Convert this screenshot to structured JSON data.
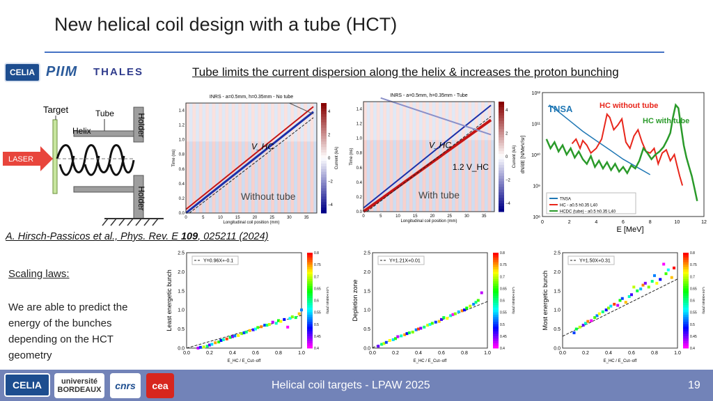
{
  "slide": {
    "title": "New helical coil design with a tube (HCT)",
    "headline": "Tube limits the current dispersion along the helix & increases the proton bunching",
    "citation_prefix": "A. Hirsch-Passicos et al., Phys. Rev. E ",
    "citation_volume": "109",
    "citation_suffix": ", 025211 (2024)",
    "scaling_heading": "Scaling laws:",
    "scaling_text": "We are able to predict the energy of the bunches depending on the HCT geometry",
    "footer_text": "Helical coil targets - LPAW 2025",
    "page_number": "19"
  },
  "logos": {
    "celia": "CELIA",
    "piim": "PIIM",
    "thales": "THALES",
    "universite_line1": "université",
    "universite_line2": "BORDEAUX",
    "cnrs": "cnrs",
    "cea": "cea"
  },
  "diagram": {
    "target": "Target",
    "tube": "Tube",
    "helix": "Helix",
    "holder_top": "Holder",
    "holder_bottom": "Holder",
    "laser": "LASER"
  },
  "colors": {
    "title_rule": "#4472c4",
    "footer": "#7283b8",
    "laser": "#e8453c",
    "hc_without": "#e8261b",
    "hc_with": "#2a9a2a",
    "tnsa": "#1f77b4",
    "accent_red": "#c00000"
  },
  "chart_data": [
    {
      "type": "heatmap",
      "title": "INRS - a=0.5mm, h=0.35mm - No tube",
      "xlabel": "Longitudinal coil position (mm)",
      "ylabel": "Time (ns)",
      "colorbar_label": "Current (kA)",
      "xlim": [
        0,
        38
      ],
      "ylim": [
        0,
        1.5
      ],
      "xticks": [
        "0",
        "5",
        "10",
        "15",
        "20",
        "25",
        "30",
        "35"
      ],
      "yticks": [
        "0.0",
        "0.2",
        "0.4",
        "0.6",
        "0.8",
        "1.0",
        "1.2",
        "1.4"
      ],
      "cbar_ticks": [
        "4",
        "2",
        "0",
        "−2",
        "−4"
      ],
      "annotations": [
        "V_HC"
      ],
      "overlay_label": "Without tube"
    },
    {
      "type": "heatmap",
      "title": "INRS - a=0.5mm, h=0.35mm - Tube",
      "xlabel": "Longitudinal coil position (mm)",
      "ylabel": "Time (ns)",
      "colorbar_label": "Current (kA)",
      "xlim": [
        0,
        38
      ],
      "ylim": [
        0,
        1.5
      ],
      "xticks": [
        "0",
        "5",
        "10",
        "15",
        "20",
        "25",
        "30",
        "35"
      ],
      "yticks": [
        "0.0",
        "0.2",
        "0.4",
        "0.6",
        "0.8",
        "1.0",
        "1.2",
        "1.4"
      ],
      "cbar_ticks": [
        "4",
        "2",
        "0",
        "−2",
        "−4"
      ],
      "annotations": [
        "V_HC",
        "1.2 V_HC"
      ],
      "overlay_label": "With tube"
    },
    {
      "type": "line",
      "xlabel": "E [MeV]",
      "ylabel": "dN/dE [N/MeV/sr]",
      "xlim": [
        0,
        12
      ],
      "ylim_log": [
        8,
        12
      ],
      "xticks": [
        "0",
        "2",
        "4",
        "6",
        "8",
        "10",
        "12"
      ],
      "yticks": [
        "10¹²",
        "10¹¹",
        "10¹⁰",
        "10⁹",
        "10⁸"
      ],
      "annotations": {
        "tnsa": "TNSA",
        "hc_without": "HC without tube",
        "hc_with": "HC with tube"
      },
      "legend": [
        "TNSA",
        "HC - a0.5 h0.35 L40",
        "HCDC (tube) - a0.5 h0.35 L40"
      ],
      "series": [
        {
          "name": "TNSA",
          "x": [
            0.5,
            1,
            2,
            3,
            4,
            5,
            6,
            7,
            8
          ],
          "logy": [
            11.6,
            11.45,
            11.1,
            10.75,
            10.45,
            10.15,
            9.85,
            9.6,
            9.35
          ]
        },
        {
          "name": "HC - a0.5 h0.35 L40",
          "x": [
            2.2,
            2.5,
            2.8,
            3.0,
            3.3,
            3.6,
            4.0,
            4.4,
            4.8,
            5.0,
            5.3,
            5.6,
            5.9,
            6.2,
            6.5,
            6.8,
            7.1,
            7.4,
            7.7,
            8.0,
            8.3,
            8.6,
            8.9,
            9.2,
            9.5,
            9.8,
            10.0,
            10.2,
            10.4
          ],
          "logy": [
            10.35,
            10.5,
            10.2,
            10.45,
            10.3,
            10.05,
            10.2,
            10.5,
            11.3,
            11.2,
            10.8,
            10.95,
            11.15,
            10.4,
            10.2,
            10.6,
            10.8,
            10.4,
            10.1,
            10.05,
            10.2,
            9.7,
            10.05,
            10.15,
            9.8,
            10.0,
            9.65,
            9.3,
            9.0
          ]
        },
        {
          "name": "HCDC (tube) - a0.5 h0.35 L40",
          "x": [
            0.3,
            0.6,
            0.9,
            1.2,
            1.5,
            1.8,
            2.1,
            2.4,
            2.7,
            3.0,
            3.3,
            3.6,
            3.9,
            4.2,
            4.5,
            4.8,
            5.1,
            5.4,
            5.7,
            6.0,
            6.3,
            6.6,
            6.9,
            7.2,
            7.5,
            7.8,
            8.1,
            8.4,
            8.7,
            9.0,
            9.3,
            9.5,
            9.7,
            9.9,
            10.1,
            10.3,
            10.5,
            10.7,
            10.9,
            11.1,
            11.3,
            11.5
          ],
          "logy": [
            10.5,
            10.2,
            10.4,
            10.1,
            10.3,
            10.0,
            10.2,
            9.9,
            10.1,
            9.85,
            9.7,
            9.95,
            9.6,
            9.8,
            9.55,
            9.75,
            9.5,
            9.7,
            9.45,
            9.6,
            9.4,
            9.65,
            9.55,
            9.8,
            10.2,
            10.05,
            9.85,
            10.0,
            10.1,
            10.25,
            10.5,
            10.7,
            11.2,
            11.6,
            11.5,
            10.9,
            10.3,
            9.9,
            9.6,
            9.3,
            8.9,
            8.5
          ]
        }
      ]
    },
    {
      "type": "scatter",
      "ylabel": "Least energetic bunch",
      "xlabel": "E_HC / E_Cut−off",
      "xlim": [
        0.0,
        1.0
      ],
      "ylim": [
        0.0,
        2.5
      ],
      "xticks": [
        "0.0",
        "0.2",
        "0.4",
        "0.6",
        "0.8",
        "1.0"
      ],
      "yticks": [
        "0.0",
        "0.5",
        "1.0",
        "1.5",
        "2.0",
        "2.5"
      ],
      "fit": {
        "label": "Y=0.96X+-0.1",
        "slope": 0.96,
        "intercept": -0.1
      },
      "colorbar_label": "Coil Radius (mm)",
      "cbar_ticks": [
        "0.8",
        "0.75",
        "0.7",
        "0.65",
        "0.6",
        "0.55",
        "0.5",
        "0.45",
        "0.4"
      ],
      "x": [
        0.1,
        0.12,
        0.15,
        0.18,
        0.2,
        0.22,
        0.25,
        0.28,
        0.3,
        0.32,
        0.35,
        0.38,
        0.4,
        0.42,
        0.45,
        0.48,
        0.5,
        0.52,
        0.55,
        0.58,
        0.6,
        0.62,
        0.65,
        0.68,
        0.7,
        0.72,
        0.75,
        0.78,
        0.8,
        0.82,
        0.85,
        0.88,
        0.9,
        0.92,
        0.95,
        0.98,
        1.0
      ],
      "y": [
        0.0,
        0.02,
        0.03,
        0.05,
        0.08,
        0.1,
        0.14,
        0.16,
        0.2,
        0.22,
        0.24,
        0.28,
        0.3,
        0.32,
        0.33,
        0.38,
        0.4,
        0.42,
        0.46,
        0.48,
        0.5,
        0.54,
        0.56,
        0.6,
        0.6,
        0.62,
        0.68,
        0.65,
        0.72,
        0.7,
        0.75,
        0.55,
        0.78,
        0.82,
        0.8,
        0.9,
        1.0
      ],
      "c": [
        0.42,
        0.5,
        0.7,
        0.6,
        0.45,
        0.55,
        0.75,
        0.65,
        0.48,
        0.58,
        0.78,
        0.62,
        0.44,
        0.52,
        0.72,
        0.68,
        0.5,
        0.6,
        0.74,
        0.46,
        0.56,
        0.66,
        0.76,
        0.5,
        0.6,
        0.7,
        0.42,
        0.58,
        0.64,
        0.72,
        0.48,
        0.4,
        0.56,
        0.68,
        0.62,
        0.74,
        0.52
      ]
    },
    {
      "type": "scatter",
      "ylabel": "Depletion zone",
      "xlabel": "E_HC / E_Cut−off",
      "xlim": [
        0.0,
        1.0
      ],
      "ylim": [
        0.0,
        2.5
      ],
      "xticks": [
        "0.0",
        "0.2",
        "0.4",
        "0.6",
        "0.8",
        "1.0"
      ],
      "yticks": [
        "0.0",
        "0.5",
        "1.0",
        "1.5",
        "2.0",
        "2.5"
      ],
      "fit": {
        "label": "Y=1.21X+0.01",
        "slope": 1.21,
        "intercept": 0.01
      },
      "colorbar_label": "Coil Radius (mm)",
      "cbar_ticks": [
        "0.8",
        "0.75",
        "0.7",
        "0.65",
        "0.6",
        "0.55",
        "0.5",
        "0.45",
        "0.4"
      ],
      "x": [
        0.05,
        0.08,
        0.1,
        0.12,
        0.15,
        0.18,
        0.2,
        0.22,
        0.25,
        0.28,
        0.3,
        0.32,
        0.35,
        0.38,
        0.4,
        0.42,
        0.45,
        0.48,
        0.5,
        0.52,
        0.55,
        0.58,
        0.6,
        0.62,
        0.65,
        0.68,
        0.7,
        0.72,
        0.75,
        0.78,
        0.8,
        0.82,
        0.85,
        0.88,
        0.9,
        0.92,
        0.95
      ],
      "y": [
        0.05,
        0.1,
        0.12,
        0.15,
        0.2,
        0.22,
        0.25,
        0.3,
        0.32,
        0.35,
        0.38,
        0.4,
        0.42,
        0.48,
        0.5,
        0.52,
        0.55,
        0.6,
        0.62,
        0.65,
        0.68,
        0.7,
        0.75,
        0.8,
        0.78,
        0.85,
        0.88,
        0.9,
        0.95,
        0.98,
        1.0,
        1.05,
        1.1,
        1.15,
        1.2,
        1.25,
        1.45
      ],
      "c": [
        0.45,
        0.6,
        0.7,
        0.5,
        0.72,
        0.55,
        0.65,
        0.42,
        0.58,
        0.75,
        0.48,
        0.62,
        0.68,
        0.52,
        0.78,
        0.44,
        0.6,
        0.7,
        0.56,
        0.66,
        0.5,
        0.74,
        0.46,
        0.62,
        0.72,
        0.58,
        0.4,
        0.68,
        0.54,
        0.76,
        0.48,
        0.64,
        0.7,
        0.52,
        0.6,
        0.66,
        0.42
      ]
    },
    {
      "type": "scatter",
      "ylabel": "Most energetic bunch",
      "xlabel": "E_HC / E_Cut−off",
      "xlim": [
        0.0,
        1.0
      ],
      "ylim": [
        0.0,
        2.5
      ],
      "xticks": [
        "0.0",
        "0.2",
        "0.4",
        "0.6",
        "0.8",
        "1.0"
      ],
      "yticks": [
        "0.0",
        "0.5",
        "1.0",
        "1.5",
        "2.0",
        "2.5"
      ],
      "fit": {
        "label": "Y=1.50X+0.31",
        "slope": 1.5,
        "intercept": 0.31
      },
      "colorbar_label": "Coil Radius (mm)",
      "cbar_ticks": [
        "0.8",
        "0.75",
        "0.7",
        "0.65",
        "0.6",
        "0.55",
        "0.5",
        "0.45",
        "0.4"
      ],
      "x": [
        0.1,
        0.12,
        0.15,
        0.18,
        0.2,
        0.22,
        0.25,
        0.28,
        0.3,
        0.32,
        0.35,
        0.38,
        0.4,
        0.42,
        0.45,
        0.48,
        0.5,
        0.52,
        0.55,
        0.58,
        0.6,
        0.62,
        0.65,
        0.68,
        0.7,
        0.72,
        0.75,
        0.78,
        0.8,
        0.82,
        0.85,
        0.88,
        0.9,
        0.92,
        0.95,
        0.97
      ],
      "y": [
        0.4,
        0.5,
        0.55,
        0.6,
        0.65,
        0.7,
        0.72,
        0.8,
        0.85,
        0.9,
        0.95,
        1.0,
        1.05,
        1.1,
        1.15,
        1.12,
        1.25,
        1.3,
        1.2,
        1.35,
        1.4,
        1.6,
        1.5,
        1.55,
        1.65,
        1.7,
        1.6,
        1.75,
        1.9,
        1.7,
        1.8,
        2.2,
        1.95,
        2.05,
        1.85,
        2.1
      ],
      "c": [
        0.5,
        0.62,
        0.7,
        0.45,
        0.58,
        0.76,
        0.4,
        0.66,
        0.52,
        0.72,
        0.6,
        0.48,
        0.68,
        0.55,
        0.78,
        0.42,
        0.64,
        0.5,
        0.74,
        0.58,
        0.46,
        0.7,
        0.62,
        0.54,
        0.76,
        0.44,
        0.68,
        0.6,
        0.52,
        0.72,
        0.48,
        0.4,
        0.66,
        0.56,
        0.74,
        0.8
      ]
    }
  ]
}
